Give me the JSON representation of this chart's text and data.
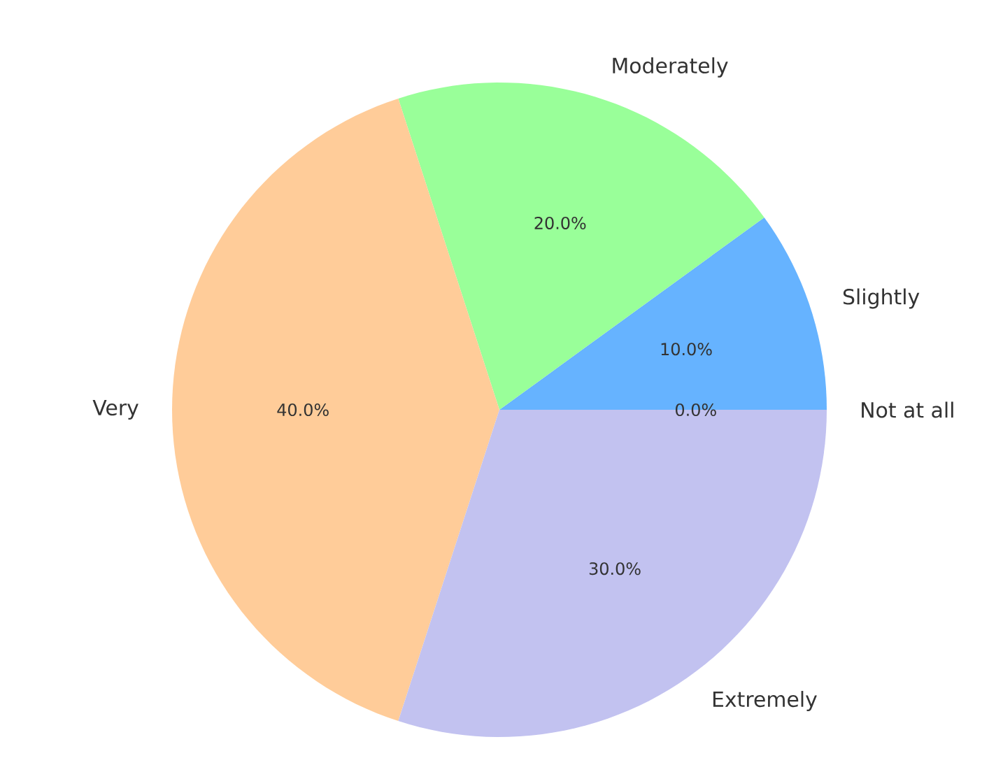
{
  "chart_data": {
    "type": "pie",
    "categories": [
      "Not at all",
      "Slightly",
      "Moderately",
      "Very",
      "Extremely"
    ],
    "values": [
      0,
      10,
      20,
      40,
      30
    ],
    "colors": [
      "#ff9999",
      "#66b3ff",
      "#99ff99",
      "#ffcc99",
      "#c2c2f0"
    ],
    "value_labels": [
      "0.0%",
      "10.0%",
      "20.0%",
      "40.0%",
      "30.0%"
    ]
  }
}
